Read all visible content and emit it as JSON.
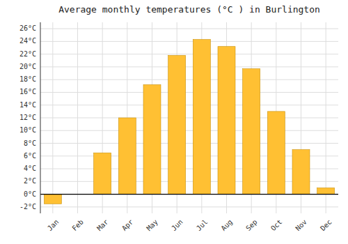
{
  "chart_data": {
    "type": "bar",
    "title": "Average monthly temperatures (°C ) in Burlington",
    "categories": [
      "Jan",
      "Feb",
      "Mar",
      "Apr",
      "May",
      "Jun",
      "Jul",
      "Aug",
      "Sep",
      "Oct",
      "Nov",
      "Dec"
    ],
    "values": [
      -1.5,
      0.0,
      6.5,
      12.0,
      17.2,
      21.8,
      24.3,
      23.2,
      19.7,
      13.0,
      7.0,
      1.0
    ],
    "color": "#FFC033",
    "ylim": [
      -3,
      27
    ],
    "yticks": [
      {
        "value": -2,
        "label": "-2°C"
      },
      {
        "value": 0,
        "label": "0°C"
      },
      {
        "value": 2,
        "label": "2°C"
      },
      {
        "value": 4,
        "label": "4°C"
      },
      {
        "value": 6,
        "label": "6°C"
      },
      {
        "value": 8,
        "label": "8°C"
      },
      {
        "value": 10,
        "label": "10°C"
      },
      {
        "value": 12,
        "label": "12°C"
      },
      {
        "value": 14,
        "label": "14°C"
      },
      {
        "value": 16,
        "label": "16°C"
      },
      {
        "value": 18,
        "label": "18°C"
      },
      {
        "value": 20,
        "label": "20°C"
      },
      {
        "value": 22,
        "label": "22°C"
      },
      {
        "value": 24,
        "label": "24°C"
      },
      {
        "value": 26,
        "label": "26°C"
      }
    ],
    "grid": true
  }
}
